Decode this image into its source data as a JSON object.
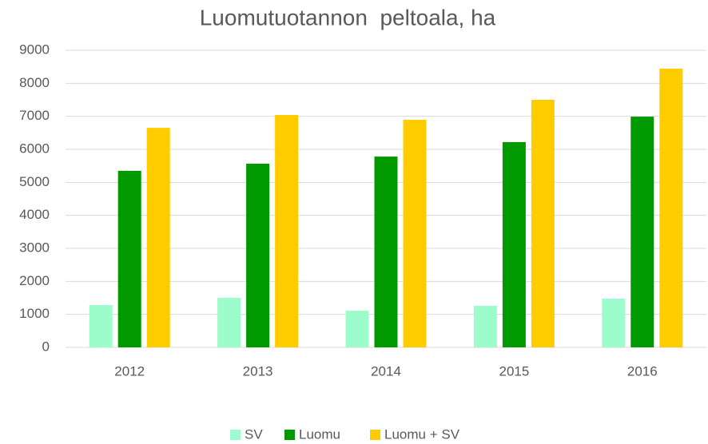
{
  "chart_data": {
    "type": "bar",
    "title": "Luomutuotannon  peltoala, ha",
    "categories": [
      "2012",
      "2013",
      "2014",
      "2015",
      "2016"
    ],
    "series": [
      {
        "name": "SV",
        "color": "#9cfccb",
        "values": [
          1280,
          1500,
          1110,
          1260,
          1475
        ]
      },
      {
        "name": "Luomu",
        "color": "#009a00",
        "values": [
          5350,
          5565,
          5780,
          6220,
          6990
        ]
      },
      {
        "name": "Luomu + SV",
        "color": "#ffcc00",
        "values": [
          6650,
          7040,
          6895,
          7500,
          8445
        ]
      }
    ],
    "ylim": [
      0,
      9000
    ],
    "yticks": [
      0,
      1000,
      2000,
      3000,
      4000,
      5000,
      6000,
      7000,
      8000,
      9000
    ],
    "grid": true,
    "legend": "bottom"
  }
}
